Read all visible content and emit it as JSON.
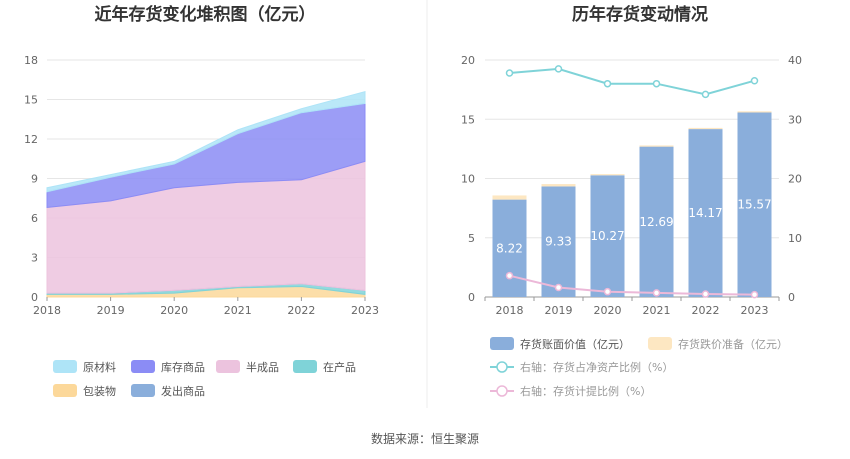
{
  "source_text": "数据来源：恒生聚源",
  "chart_data": [
    {
      "type": "area",
      "stacked": true,
      "title": "近年存货变化堆积图（亿元）",
      "x": [
        "2018",
        "2019",
        "2020",
        "2021",
        "2022",
        "2023"
      ],
      "ylim": [
        0,
        18
      ],
      "yticks": [
        0,
        3,
        6,
        9,
        12,
        15,
        18
      ],
      "grid": true,
      "legend_position": "bottom",
      "series": [
        {
          "name": "包装物",
          "color": "#fcd89a",
          "values": [
            0.2,
            0.2,
            0.3,
            0.7,
            0.8,
            0.2
          ]
        },
        {
          "name": "在产品",
          "color": "#7fd3d8",
          "values": [
            0.1,
            0.1,
            0.2,
            0.1,
            0.2,
            0.3
          ]
        },
        {
          "name": "发出商品",
          "color": "#8aaedb",
          "values": [
            0.0,
            0.0,
            0.0,
            0.0,
            0.0,
            0.0
          ]
        },
        {
          "name": "半成品",
          "color": "#ecc3de",
          "values": [
            6.5,
            7.0,
            7.8,
            7.9,
            7.9,
            9.8
          ]
        },
        {
          "name": "库存商品",
          "color": "#8b8cf5",
          "values": [
            1.2,
            1.8,
            1.8,
            3.7,
            5.1,
            4.4
          ]
        },
        {
          "name": "原材料",
          "color": "#aee4f7",
          "values": [
            0.3,
            0.2,
            0.2,
            0.3,
            0.3,
            0.9
          ]
        }
      ],
      "legend_order": [
        "原材料",
        "库存商品",
        "半成品",
        "在产品",
        "包装物",
        "发出商品"
      ]
    },
    {
      "type": "bar",
      "title": "历年存货变动情况",
      "categories": [
        "2018",
        "2019",
        "2020",
        "2021",
        "2022",
        "2023"
      ],
      "ylim": [
        0,
        20
      ],
      "yticks": [
        0,
        5,
        10,
        15,
        20
      ],
      "y2lim": [
        0,
        40
      ],
      "y2ticks": [
        0,
        10,
        20,
        30,
        40
      ],
      "grid": true,
      "legend_position": "bottom",
      "series": [
        {
          "name": "存货账面价值（亿元）",
          "kind": "bar",
          "color": "#8aaedb",
          "values": [
            8.22,
            9.33,
            10.27,
            12.69,
            14.17,
            15.57
          ],
          "labels": [
            "8.22",
            "9.33",
            "10.27",
            "12.69",
            "14.17",
            "15.57"
          ]
        },
        {
          "name": "存货跌价准备（亿元）",
          "kind": "bar-stack",
          "color": "#fde7c2",
          "values": [
            0.35,
            0.2,
            0.1,
            0.1,
            0.1,
            0.1
          ]
        },
        {
          "name": "右轴：存货占净资产比例（%）",
          "kind": "line",
          "axis": "right",
          "color": "#7fd3d8",
          "values": [
            37.8,
            38.5,
            36.0,
            36.0,
            34.2,
            36.5
          ]
        },
        {
          "name": "右轴：存货计提比例（%）",
          "kind": "line",
          "axis": "right",
          "color": "#ecb8d8",
          "values": [
            3.6,
            1.6,
            0.9,
            0.7,
            0.5,
            0.4
          ]
        }
      ]
    }
  ]
}
